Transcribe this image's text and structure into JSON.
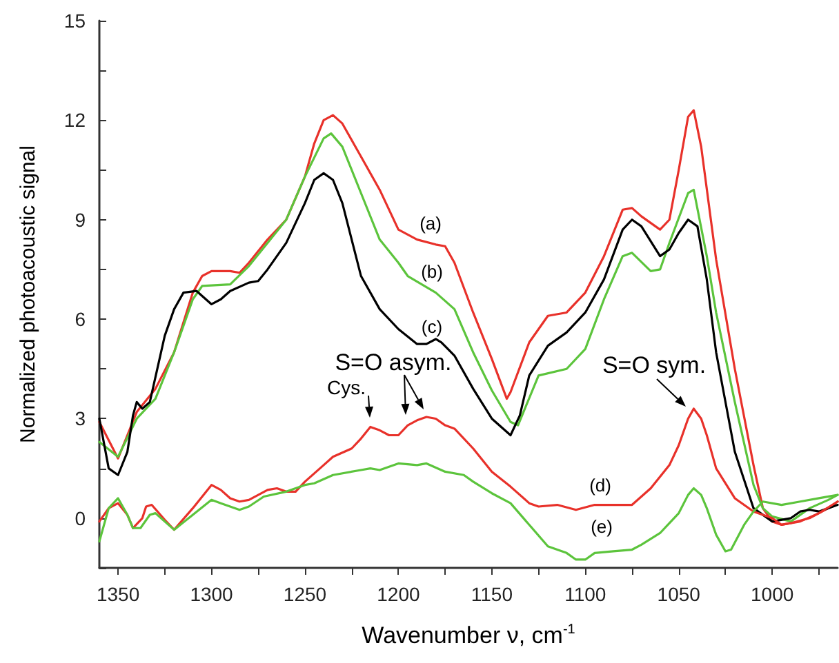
{
  "chart_data": {
    "type": "line",
    "xlabel": "Wavenumber ν, cm$^{-1}$",
    "ylabel": "Normalized photoacoustic signal",
    "xlim": [
      1360,
      965
    ],
    "ylim": [
      -1.5,
      15
    ],
    "xticks": [
      1350,
      {
        "value": 1325,
        "label": null
      },
      1300,
      {
        "value": 1275,
        "label": null
      },
      1250,
      {
        "value": 1225,
        "label": null
      },
      1200,
      {
        "value": 1175,
        "label": null
      },
      1150,
      {
        "value": 1125,
        "label": null
      },
      1100,
      {
        "value": 1075,
        "label": null
      },
      1050,
      {
        "value": 1025,
        "label": null
      },
      1000,
      {
        "value": 975,
        "label": null
      }
    ],
    "yticks": [
      {
        "value": -1.5,
        "label": null
      },
      0,
      {
        "value": 1.5,
        "label": null
      },
      3,
      {
        "value": 4.5,
        "label": null
      },
      6,
      {
        "value": 7.5,
        "label": null
      },
      9,
      {
        "value": 10.5,
        "label": null
      },
      12,
      {
        "value": 13.5,
        "label": null
      },
      15
    ],
    "grid": false,
    "marker": "none",
    "line_style": "solid",
    "series": [
      {
        "color": "#e8312a",
        "x": [
          1360,
          1350,
          1345,
          1340,
          1330,
          1320,
          1310,
          1305,
          1300,
          1290,
          1285,
          1280,
          1270,
          1260,
          1250,
          1245,
          1240,
          1235,
          1230,
          1220,
          1210,
          1200,
          1190,
          1180,
          1175,
          1170,
          1160,
          1150,
          1142,
          1140,
          1130,
          1120,
          1110,
          1100,
          1090,
          1080,
          1075,
          1070,
          1060,
          1055,
          1050,
          1045,
          1042,
          1038,
          1030,
          1020,
          1010,
          1005,
          1000,
          995,
          990,
          980,
          970,
          965
        ],
        "values": [
          2.9,
          1.8,
          2.5,
          3.2,
          3.9,
          5.0,
          6.8,
          7.3,
          7.45,
          7.45,
          7.4,
          7.7,
          8.4,
          9.0,
          10.3,
          11.3,
          12.0,
          12.15,
          11.9,
          10.9,
          9.9,
          8.7,
          8.4,
          8.25,
          8.2,
          7.7,
          6.2,
          4.8,
          3.6,
          3.8,
          5.3,
          6.1,
          6.2,
          6.8,
          7.9,
          9.3,
          9.35,
          9.1,
          8.7,
          9.0,
          10.5,
          12.1,
          12.3,
          11.2,
          7.8,
          4.5,
          1.6,
          0.3,
          -0.1,
          -0.2,
          -0.15,
          0.0,
          0.3,
          0.5
        ]
      },
      {
        "color": "#5cc43c",
        "x": [
          1360,
          1350,
          1340,
          1335,
          1330,
          1320,
          1310,
          1305,
          1290,
          1280,
          1270,
          1260,
          1250,
          1240,
          1236,
          1230,
          1220,
          1210,
          1200,
          1195,
          1180,
          1170,
          1160,
          1150,
          1140,
          1136,
          1125,
          1110,
          1100,
          1090,
          1080,
          1075,
          1065,
          1060,
          1055,
          1045,
          1042,
          1035,
          1030,
          1020,
          1010,
          1005,
          1000,
          990,
          980,
          970,
          965
        ],
        "values": [
          2.3,
          1.85,
          3.0,
          3.3,
          3.6,
          5.0,
          6.6,
          7.0,
          7.05,
          7.6,
          8.3,
          9.0,
          10.3,
          11.45,
          11.6,
          11.2,
          9.8,
          8.4,
          7.7,
          7.3,
          6.8,
          6.3,
          5.0,
          3.85,
          2.9,
          2.8,
          4.3,
          4.5,
          5.1,
          6.6,
          7.9,
          8.0,
          7.45,
          7.5,
          8.3,
          9.8,
          9.9,
          7.9,
          6.2,
          3.5,
          1.0,
          0.3,
          0.05,
          -0.1,
          0.3,
          0.55,
          0.7
        ]
      },
      {
        "color": "#000000",
        "x": [
          1360,
          1355,
          1350,
          1345,
          1342,
          1340,
          1337,
          1333,
          1325,
          1320,
          1315,
          1308,
          1300,
          1295,
          1290,
          1280,
          1275,
          1270,
          1260,
          1250,
          1245,
          1240,
          1235,
          1230,
          1220,
          1210,
          1200,
          1190,
          1185,
          1180,
          1177,
          1170,
          1160,
          1150,
          1140,
          1135,
          1130,
          1120,
          1110,
          1100,
          1090,
          1080,
          1075,
          1070,
          1060,
          1055,
          1050,
          1045,
          1040,
          1035,
          1030,
          1020,
          1010,
          1000,
          990,
          985,
          980,
          975,
          970,
          965
        ],
        "values": [
          3.0,
          1.5,
          1.3,
          2.0,
          3.1,
          3.5,
          3.3,
          3.5,
          5.5,
          6.3,
          6.8,
          6.85,
          6.45,
          6.6,
          6.85,
          7.1,
          7.15,
          7.5,
          8.3,
          9.5,
          10.2,
          10.4,
          10.2,
          9.5,
          7.3,
          6.3,
          5.7,
          5.25,
          5.25,
          5.4,
          5.3,
          4.9,
          3.9,
          3.0,
          2.5,
          3.1,
          4.3,
          5.2,
          5.6,
          6.2,
          7.2,
          8.7,
          9.0,
          8.8,
          7.9,
          8.1,
          8.6,
          9.0,
          8.8,
          7.2,
          5.0,
          2.0,
          0.3,
          -0.1,
          0.0,
          0.2,
          0.25,
          0.2,
          0.3,
          0.4
        ]
      },
      {
        "color": "#e8312a",
        "x": [
          1360,
          1355,
          1350,
          1345,
          1342,
          1337,
          1335,
          1332,
          1325,
          1320,
          1310,
          1300,
          1295,
          1290,
          1285,
          1280,
          1270,
          1265,
          1260,
          1255,
          1250,
          1240,
          1235,
          1225,
          1220,
          1215,
          1210,
          1205,
          1200,
          1195,
          1190,
          1185,
          1180,
          1175,
          1170,
          1160,
          1150,
          1140,
          1130,
          1125,
          1115,
          1105,
          1095,
          1085,
          1075,
          1065,
          1055,
          1050,
          1045,
          1042,
          1038,
          1035,
          1030,
          1020,
          1010,
          1000,
          995,
          985,
          975,
          965
        ],
        "values": [
          -0.1,
          0.3,
          0.45,
          0.1,
          -0.3,
          0.0,
          0.35,
          0.4,
          -0.05,
          -0.35,
          0.3,
          1.0,
          0.85,
          0.6,
          0.5,
          0.55,
          0.85,
          0.9,
          0.8,
          0.8,
          1.1,
          1.6,
          1.85,
          2.1,
          2.4,
          2.75,
          2.65,
          2.5,
          2.5,
          2.8,
          2.95,
          3.05,
          3.0,
          2.8,
          2.7,
          2.1,
          1.4,
          0.95,
          0.45,
          0.35,
          0.4,
          0.25,
          0.4,
          0.4,
          0.4,
          0.9,
          1.6,
          2.2,
          3.0,
          3.3,
          3.0,
          2.5,
          1.5,
          0.6,
          0.2,
          0.0,
          -0.2,
          -0.1,
          0.15,
          0.5
        ]
      },
      {
        "color": "#5cc43c",
        "x": [
          1360,
          1355,
          1350,
          1345,
          1342,
          1338,
          1333,
          1330,
          1320,
          1310,
          1300,
          1295,
          1285,
          1280,
          1272,
          1260,
          1250,
          1245,
          1235,
          1220,
          1215,
          1210,
          1200,
          1190,
          1185,
          1175,
          1165,
          1160,
          1150,
          1140,
          1130,
          1120,
          1110,
          1105,
          1100,
          1095,
          1085,
          1075,
          1070,
          1060,
          1050,
          1045,
          1042,
          1038,
          1035,
          1030,
          1025,
          1022,
          1015,
          1010,
          1005,
          995,
          985,
          975,
          965
        ],
        "values": [
          -0.7,
          0.3,
          0.6,
          0.1,
          -0.3,
          -0.3,
          0.1,
          0.15,
          -0.35,
          0.1,
          0.55,
          0.45,
          0.25,
          0.35,
          0.65,
          0.8,
          1.0,
          1.05,
          1.3,
          1.45,
          1.5,
          1.45,
          1.65,
          1.6,
          1.65,
          1.4,
          1.3,
          1.1,
          0.75,
          0.45,
          -0.2,
          -0.85,
          -1.05,
          -1.25,
          -1.25,
          -1.05,
          -1.0,
          -0.95,
          -0.8,
          -0.45,
          0.15,
          0.7,
          0.9,
          0.7,
          0.3,
          -0.5,
          -1.0,
          -0.95,
          -0.2,
          0.2,
          0.5,
          0.4,
          0.5,
          0.6,
          0.7
        ]
      }
    ],
    "annotations": [
      "(a)",
      "(b)",
      "(c)",
      "(d)",
      "(e)",
      "S=O asym.",
      "Cys.",
      "S=O sym."
    ]
  }
}
